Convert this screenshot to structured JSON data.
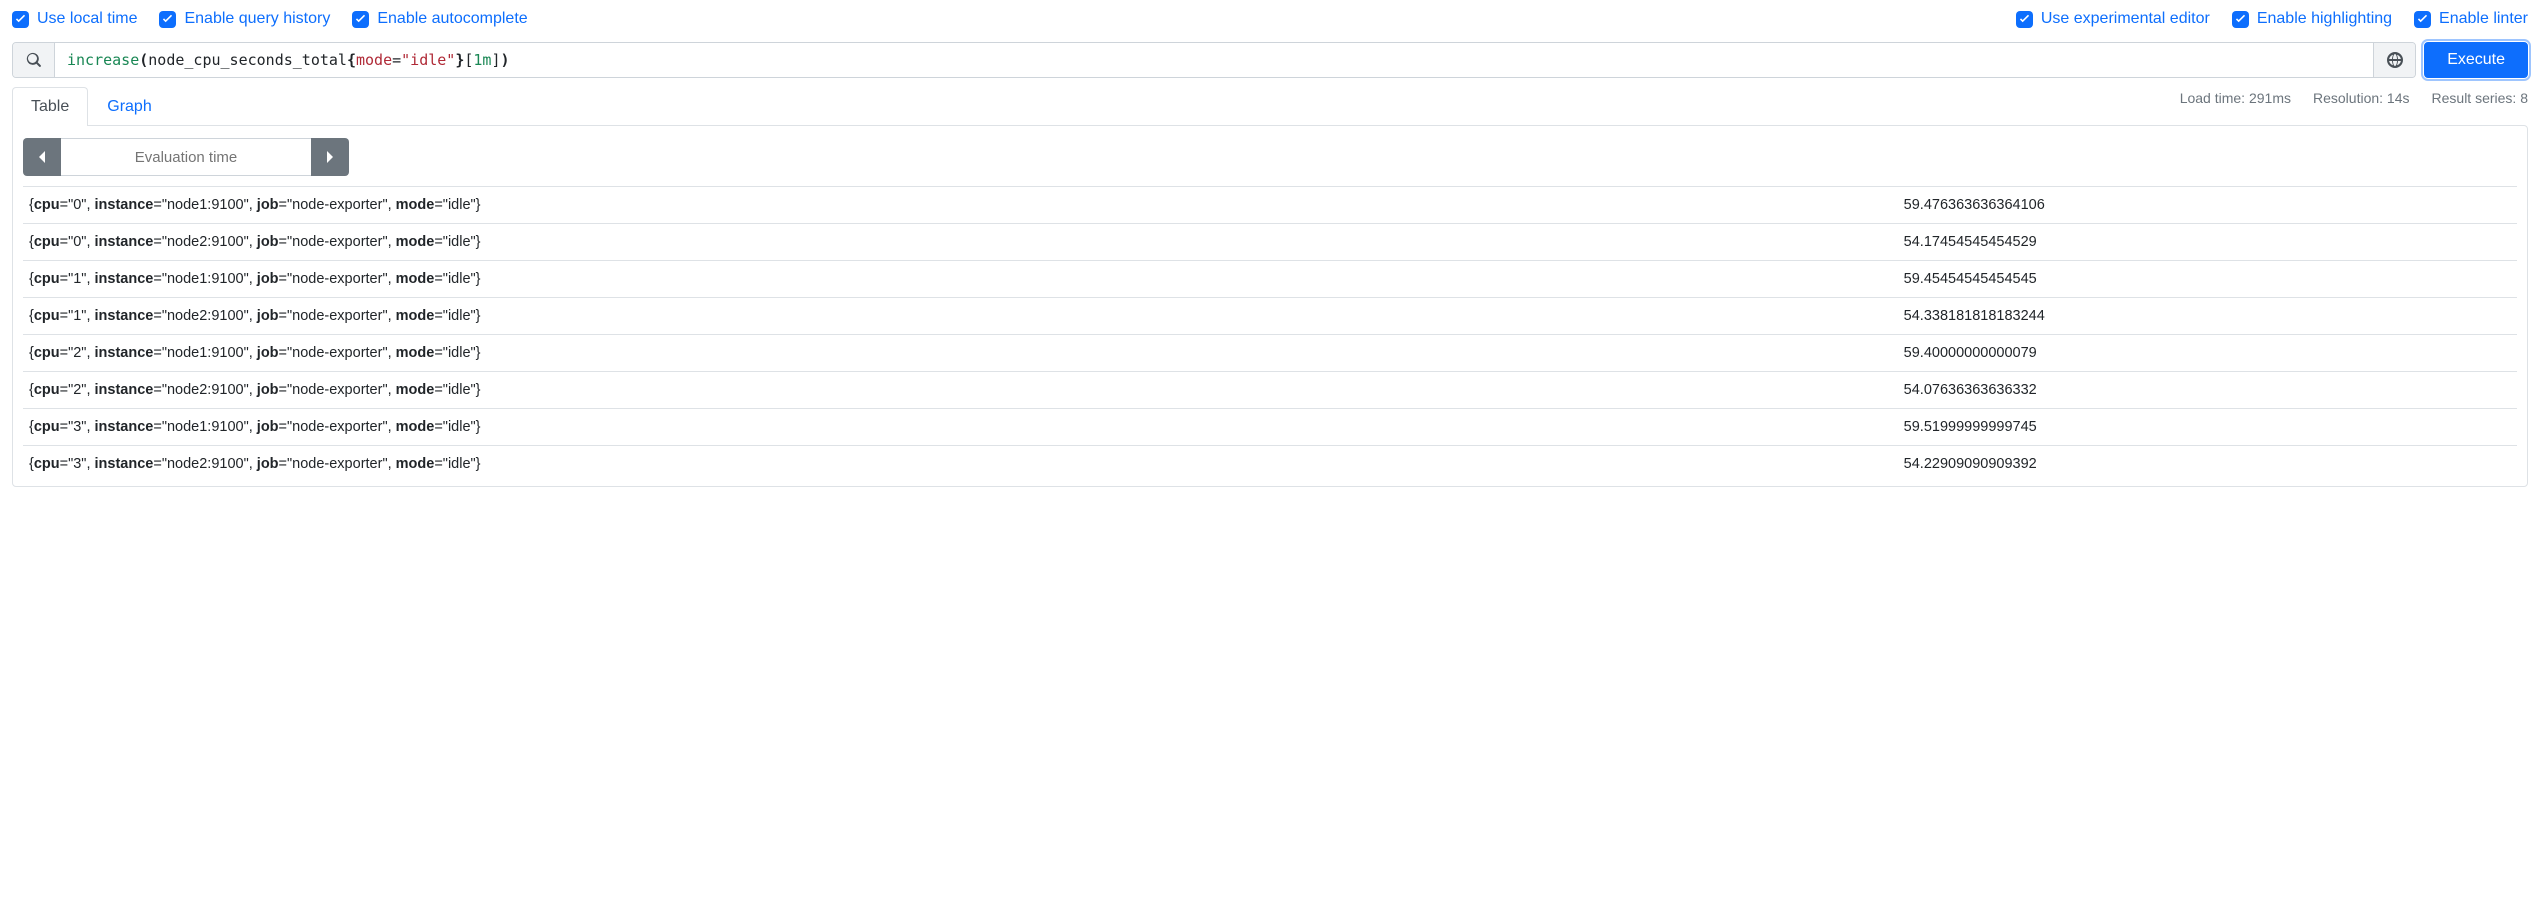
{
  "colors": {
    "accent": "#0d6efd",
    "muted": "#6c757d",
    "border": "#dee2e6",
    "input_border": "#ced4da",
    "addon_bg": "#f1f3f5",
    "token_fn": "#198754",
    "token_key": "#b02a37",
    "token_dur": "#198754",
    "text": "#212529",
    "focus_ring": "#9ec5fe"
  },
  "options": {
    "left": [
      {
        "label": "Use local time",
        "checked": true
      },
      {
        "label": "Enable query history",
        "checked": true
      },
      {
        "label": "Enable autocomplete",
        "checked": true
      }
    ],
    "right": [
      {
        "label": "Use experimental editor",
        "checked": true
      },
      {
        "label": "Enable highlighting",
        "checked": true
      },
      {
        "label": "Enable linter",
        "checked": true
      }
    ]
  },
  "query": {
    "tokens": [
      {
        "cls": "tok-fn",
        "t": "increase"
      },
      {
        "cls": "tok-punc",
        "t": "("
      },
      {
        "cls": "tok-id",
        "t": "node_cpu_seconds_total"
      },
      {
        "cls": "tok-punc",
        "t": "{"
      },
      {
        "cls": "tok-key",
        "t": "mode"
      },
      {
        "cls": "tok-id",
        "t": "="
      },
      {
        "cls": "tok-str",
        "t": "\"idle\""
      },
      {
        "cls": "tok-punc",
        "t": "}"
      },
      {
        "cls": "tok-id",
        "t": "["
      },
      {
        "cls": "tok-dur",
        "t": "1m"
      },
      {
        "cls": "tok-id",
        "t": "]"
      },
      {
        "cls": "tok-punc",
        "t": ")"
      }
    ],
    "execute_label": "Execute"
  },
  "tabs": {
    "items": [
      {
        "label": "Table",
        "active": true
      },
      {
        "label": "Graph",
        "active": false
      }
    ]
  },
  "stats": {
    "load_time": "Load time: 291ms",
    "resolution": "Resolution: 14s",
    "series": "Result series: 8"
  },
  "eval": {
    "placeholder": "Evaluation time"
  },
  "results": {
    "label_keys": [
      "cpu",
      "instance",
      "job",
      "mode"
    ],
    "rows": [
      {
        "labels": {
          "cpu": "0",
          "instance": "node1:9100",
          "job": "node-exporter",
          "mode": "idle"
        },
        "value": "59.476363636364106"
      },
      {
        "labels": {
          "cpu": "0",
          "instance": "node2:9100",
          "job": "node-exporter",
          "mode": "idle"
        },
        "value": "54.17454545454529"
      },
      {
        "labels": {
          "cpu": "1",
          "instance": "node1:9100",
          "job": "node-exporter",
          "mode": "idle"
        },
        "value": "59.45454545454545"
      },
      {
        "labels": {
          "cpu": "1",
          "instance": "node2:9100",
          "job": "node-exporter",
          "mode": "idle"
        },
        "value": "54.338181818183244"
      },
      {
        "labels": {
          "cpu": "2",
          "instance": "node1:9100",
          "job": "node-exporter",
          "mode": "idle"
        },
        "value": "59.40000000000079"
      },
      {
        "labels": {
          "cpu": "2",
          "instance": "node2:9100",
          "job": "node-exporter",
          "mode": "idle"
        },
        "value": "54.07636363636332"
      },
      {
        "labels": {
          "cpu": "3",
          "instance": "node1:9100",
          "job": "node-exporter",
          "mode": "idle"
        },
        "value": "59.51999999999745"
      },
      {
        "labels": {
          "cpu": "3",
          "instance": "node2:9100",
          "job": "node-exporter",
          "mode": "idle"
        },
        "value": "54.22909090909392"
      }
    ]
  }
}
